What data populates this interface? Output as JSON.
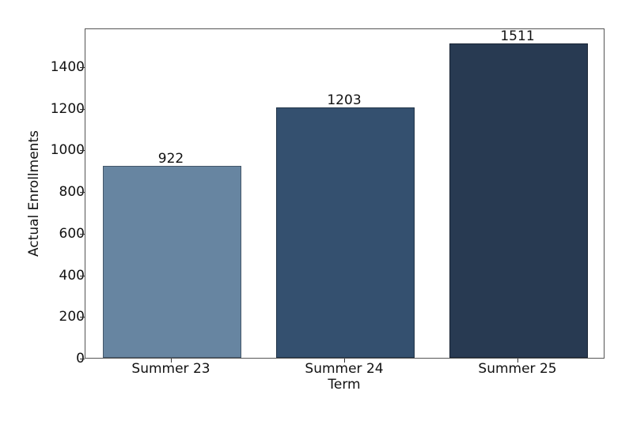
{
  "chart_data": {
    "type": "bar",
    "title": "",
    "xlabel": "Term",
    "ylabel": "Actual Enrollments",
    "categories": [
      "Summer 23",
      "Summer 24",
      "Summer 25"
    ],
    "values": [
      922,
      1203,
      1511
    ],
    "data_labels": [
      "922",
      "1203",
      "1511"
    ],
    "colors": [
      "#6785a1",
      "#34506f",
      "#283a52"
    ],
    "ylim": [
      0,
      1586
    ],
    "yticks": [
      0,
      200,
      400,
      600,
      800,
      1000,
      1200,
      1400
    ],
    "ytick_labels": [
      "0",
      "200",
      "400",
      "600",
      "800",
      "1000",
      "1200",
      "1400"
    ],
    "grid": false,
    "legend": null
  }
}
